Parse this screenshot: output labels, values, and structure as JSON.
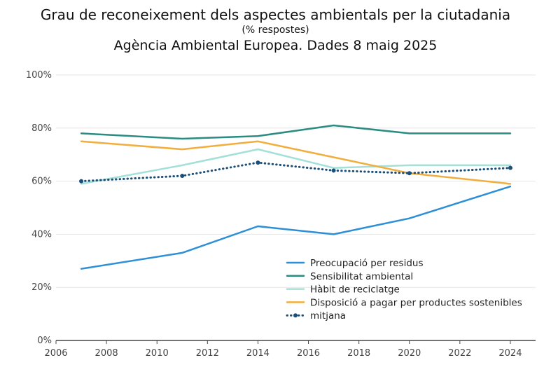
{
  "chart_data": {
    "type": "line",
    "title": "Grau de reconeixement dels aspectes ambientals per la ciutadania",
    "subtitle_small": "(% respostes)",
    "subtitle": "Agència Ambiental Europea. Dades 8 maig 2025",
    "xlabel": "",
    "ylabel": "",
    "xlim": [
      2006,
      2025
    ],
    "ylim": [
      0,
      100
    ],
    "x_ticks": [
      2006,
      2008,
      2010,
      2012,
      2014,
      2016,
      2018,
      2020,
      2022,
      2024
    ],
    "y_ticks": [
      0,
      20,
      40,
      60,
      80,
      100
    ],
    "y_tick_labels": [
      "0%",
      "20%",
      "40%",
      "60%",
      "80%",
      "100%"
    ],
    "grid": "horizontal",
    "legend_position": "bottom-right",
    "series": [
      {
        "name": "Preocupació per residus",
        "color": "#2d8fd6",
        "style": "solid",
        "x": [
          2007,
          2011,
          2014,
          2017,
          2020,
          2024
        ],
        "values": [
          27,
          33,
          43,
          40,
          46,
          58
        ]
      },
      {
        "name": "Sensibilitat ambiental",
        "color": "#2a8c82",
        "style": "solid",
        "x": [
          2007,
          2011,
          2014,
          2017,
          2020,
          2024
        ],
        "values": [
          78,
          76,
          77,
          81,
          78,
          78
        ]
      },
      {
        "name": "Hàbit de reciclatge",
        "color": "#a3e0d8",
        "style": "solid",
        "x": [
          2007,
          2011,
          2014,
          2017,
          2020,
          2024
        ],
        "values": [
          59,
          66,
          72,
          65,
          66,
          66
        ]
      },
      {
        "name": "Disposició a pagar per productes sostenibles",
        "color": "#f2ae3d",
        "style": "solid",
        "x": [
          2007,
          2011,
          2014,
          2017,
          2020,
          2024
        ],
        "values": [
          75,
          72,
          75,
          69,
          63,
          59
        ]
      },
      {
        "name": "mitjana",
        "color": "#1c4f78",
        "style": "dotted",
        "x": [
          2007,
          2011,
          2014,
          2017,
          2020,
          2024
        ],
        "values": [
          60,
          62,
          67,
          64,
          63,
          65
        ]
      }
    ]
  }
}
